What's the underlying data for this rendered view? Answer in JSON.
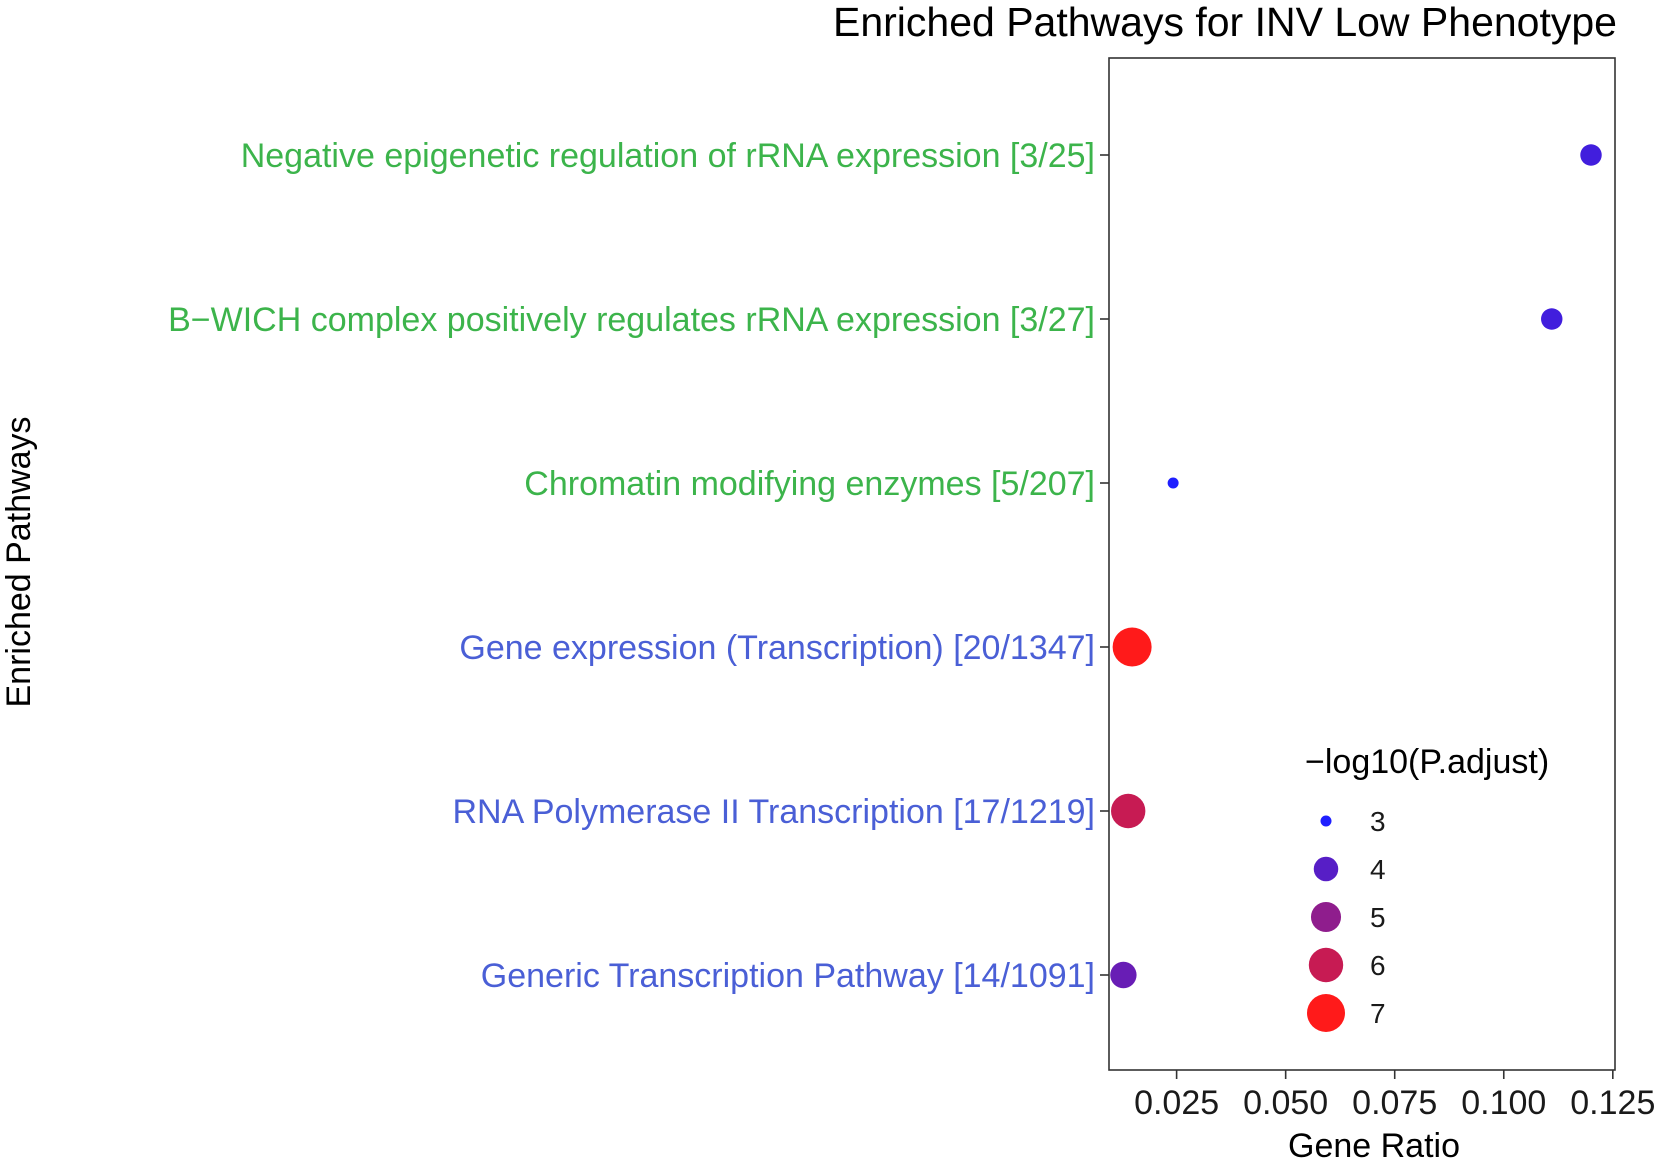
{
  "chart_data": {
    "type": "scatter",
    "title": "Enriched Pathways for INV Low Phenotype",
    "xlabel": "Gene Ratio",
    "ylabel": "Enriched Pathways",
    "xlim": [
      0.0095,
      0.1255
    ],
    "x_ticks": [
      0.025,
      0.05,
      0.075,
      0.1,
      0.125
    ],
    "x_tick_labels": [
      "0.025",
      "0.050",
      "0.075",
      "0.100",
      "0.125"
    ],
    "grid": false,
    "categories": [
      "Negative epigenetic regulation of rRNA expression [3/25]",
      "B−WICH complex positively regulates rRNA expression [3/27]",
      "Chromatin modifying enzymes [5/207]",
      "Gene expression (Transcription) [20/1347]",
      "RNA Polymerase II Transcription [17/1219]",
      "Generic Transcription Pathway [14/1091]"
    ],
    "category_colors": [
      "#3cb44b",
      "#3cb44b",
      "#3cb44b",
      "#4a5fd6",
      "#4a5fd6",
      "#4a5fd6"
    ],
    "points": [
      {
        "pathway": "Negative epigenetic regulation of rRNA expression [3/25]",
        "x": 0.12,
        "neg_log10_padj": 3.6
      },
      {
        "pathway": "B−WICH complex positively regulates rRNA expression [3/27]",
        "x": 0.111,
        "neg_log10_padj": 3.6
      },
      {
        "pathway": "Chromatin modifying enzymes [5/207]",
        "x": 0.0242,
        "neg_log10_padj": 2.9
      },
      {
        "pathway": "Gene expression (Transcription) [20/1347]",
        "x": 0.0148,
        "neg_log10_padj": 7.3
      },
      {
        "pathway": "RNA Polymerase II Transcription [17/1219]",
        "x": 0.0139,
        "neg_log10_padj": 6.0
      },
      {
        "pathway": "Generic Transcription Pathway [14/1091]",
        "x": 0.0128,
        "neg_log10_padj": 4.3
      }
    ],
    "legend": {
      "title": "−log10(P.adjust)",
      "position": "bottom-right inside",
      "breaks": [
        3,
        4,
        5,
        6,
        7
      ],
      "labels": [
        "3",
        "4",
        "5",
        "6",
        "7"
      ]
    },
    "color_scale": {
      "low": "#1f1fff",
      "high": "#ff1a1a"
    }
  }
}
